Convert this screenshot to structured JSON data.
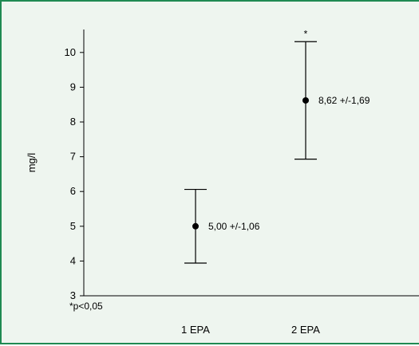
{
  "chart_data": {
    "type": "scatter",
    "title": "",
    "xlabel": "",
    "ylabel": "mg/l",
    "categories": [
      "1 EPA",
      "2 EPA"
    ],
    "series": [
      {
        "values": [
          5.0,
          8.62
        ],
        "error_low": [
          3.94,
          6.93
        ],
        "error_high": [
          6.06,
          10.31
        ],
        "data_labels": [
          "5,00 +/-1,06",
          "8,62 +/-1,69"
        ],
        "significance": [
          "",
          "*"
        ]
      }
    ],
    "yticks": [
      3,
      4,
      5,
      6,
      7,
      8,
      9,
      10
    ],
    "ylim": [
      3,
      10.8
    ],
    "grid": false,
    "footnote": "*p<0,05"
  }
}
